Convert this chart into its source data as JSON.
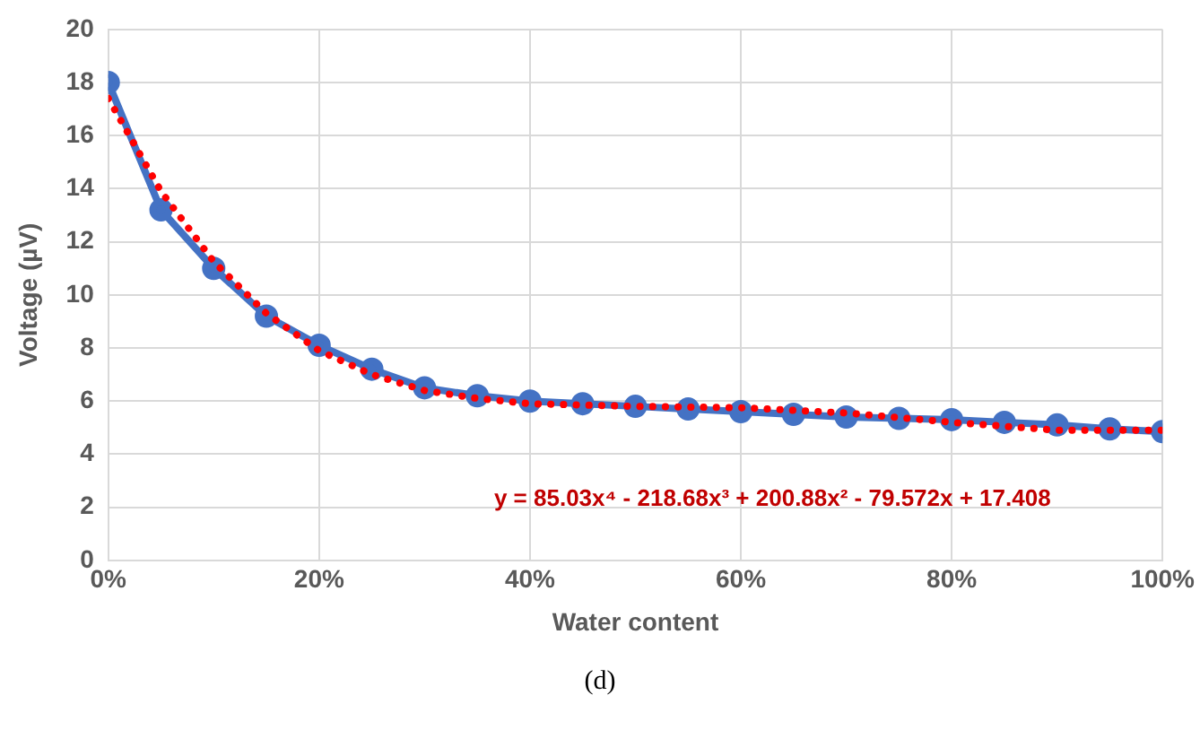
{
  "chart_data": {
    "type": "line",
    "xlabel": "Water content",
    "ylabel": "Voltage (µV)",
    "x": [
      0,
      5,
      10,
      15,
      20,
      25,
      30,
      35,
      40,
      45,
      50,
      55,
      60,
      65,
      70,
      75,
      80,
      85,
      90,
      95,
      100
    ],
    "series": [
      {
        "color": "#4472c4",
        "marker": "circle",
        "line_style": "solid",
        "values": [
          18,
          13.2,
          11,
          9.2,
          8.1,
          7.2,
          6.5,
          6.2,
          6.0,
          5.9,
          5.8,
          5.7,
          5.6,
          5.5,
          5.4,
          5.35,
          5.3,
          5.2,
          5.1,
          4.95,
          4.85
        ]
      },
      {
        "type": "line",
        "color": "#ff0000",
        "marker": "none",
        "line_style": "dotted",
        "x": [
          0,
          5,
          10,
          15,
          20,
          25,
          30,
          35,
          40,
          50,
          60,
          70,
          80,
          90,
          100
        ],
        "values": [
          17.4,
          13.9,
          11.25,
          9.3,
          7.9,
          7.0,
          6.4,
          6.1,
          5.9,
          5.8,
          5.75,
          5.55,
          5.2,
          4.9,
          4.9
        ]
      }
    ],
    "xlim": [
      0,
      100
    ],
    "xticks": [
      {
        "value": 0,
        "label": "0%"
      },
      {
        "value": 20,
        "label": "20%"
      },
      {
        "value": 40,
        "label": "40%"
      },
      {
        "value": 60,
        "label": "60%"
      },
      {
        "value": 80,
        "label": "80%"
      },
      {
        "value": 100,
        "label": "100%"
      }
    ],
    "ylim": [
      0,
      20
    ],
    "yticks": [
      0,
      2,
      4,
      6,
      8,
      10,
      12,
      14,
      16,
      18,
      20
    ],
    "grid": true,
    "legend": false,
    "annotations": [
      "y = 85.03x⁴ - 218.68x³ + 200.88x² - 79.572x + 17.408",
      "(d)"
    ]
  }
}
